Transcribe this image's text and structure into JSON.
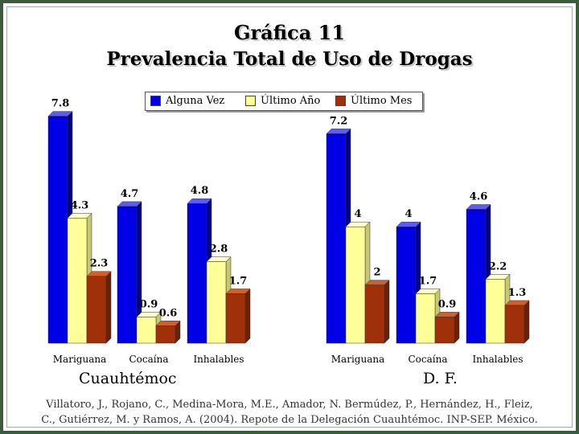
{
  "title": "Gráfica 11",
  "subtitle": "Prevalencia Total de Uso de Drogas",
  "legend": [
    "Alguna Vez",
    "Último Año",
    "Último Mes"
  ],
  "caption_line1": "Villatoro, J., Rojano, C., Medina-Mora, M.E., Amador, N. Bermúdez, P., Hernández, H., Fleiz,",
  "caption_line2": "C., Gutiérrez, M. y Ramos, A. (2004). Repote de la Delegación Cuauhtémoc. INP-SEP. México.",
  "colors": {
    "series": [
      "#0000e6",
      "#ffff99",
      "#a0300a"
    ],
    "frame": "#3c5a3c"
  },
  "chart_data": [
    {
      "type": "bar",
      "title": "Cuauhtémoc",
      "categories": [
        "Mariguana",
        "Cocaína",
        "Inhalables"
      ],
      "series": [
        {
          "name": "Alguna Vez",
          "values": [
            7.8,
            4.7,
            4.8
          ]
        },
        {
          "name": "Último Año",
          "values": [
            4.3,
            0.9,
            2.8
          ]
        },
        {
          "name": "Último Mes",
          "values": [
            2.3,
            0.6,
            1.7
          ]
        }
      ],
      "ylim": [
        0,
        8
      ],
      "grid": false
    },
    {
      "type": "bar",
      "title": "D. F.",
      "categories": [
        "Mariguana",
        "Cocaína",
        "Inhalables"
      ],
      "series": [
        {
          "name": "Alguna Vez",
          "values": [
            7.2,
            4,
            4.6
          ]
        },
        {
          "name": "Último Año",
          "values": [
            4,
            1.7,
            2.2
          ]
        },
        {
          "name": "Último Mes",
          "values": [
            2,
            0.9,
            1.3
          ]
        }
      ],
      "ylim": [
        0,
        8
      ],
      "grid": false
    }
  ]
}
